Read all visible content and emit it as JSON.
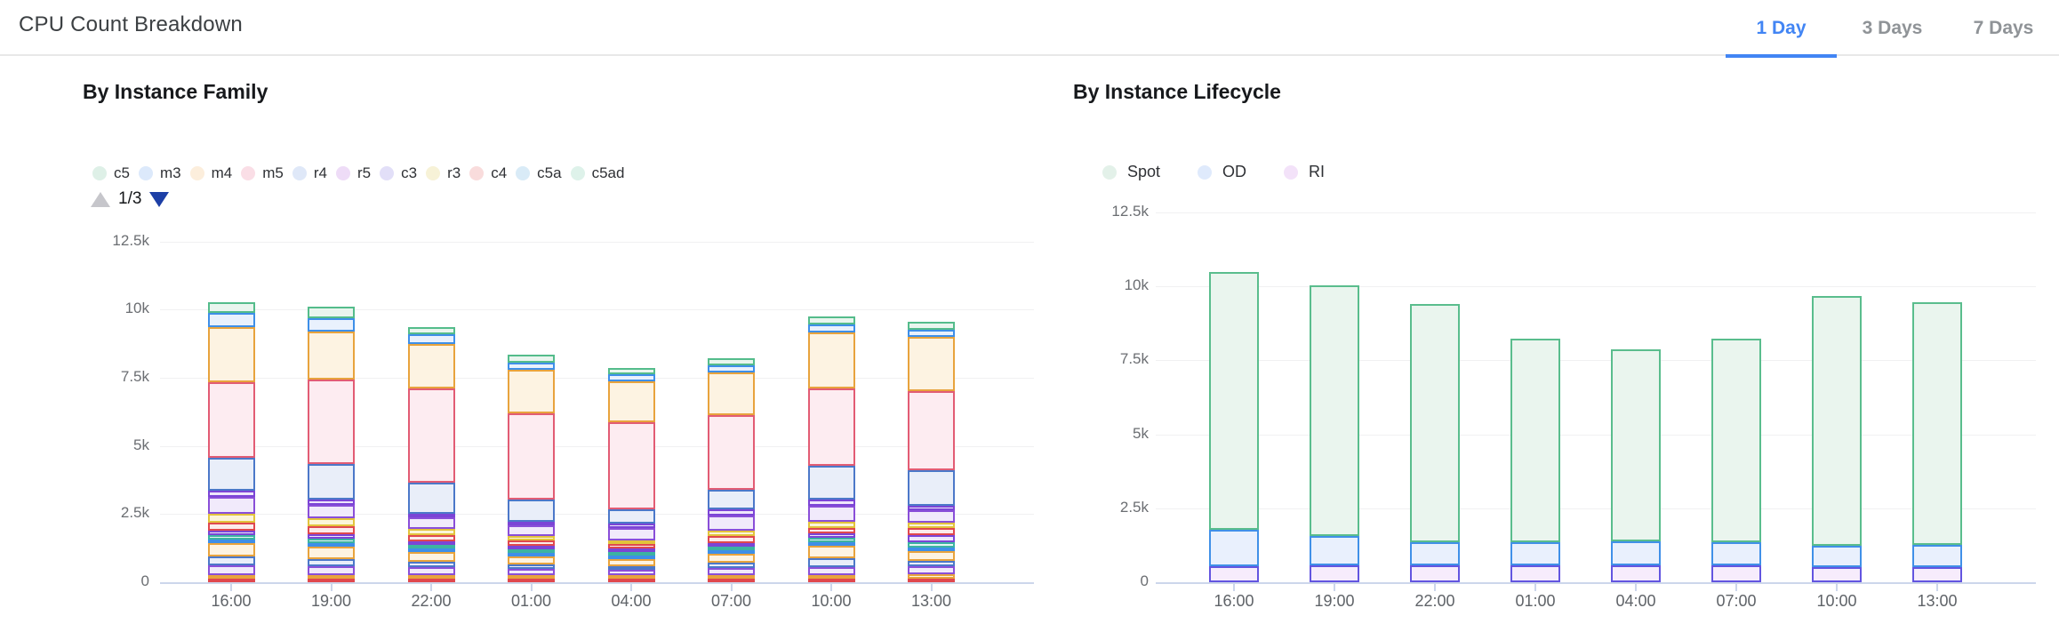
{
  "header": {
    "title": "CPU Count Breakdown",
    "tabs": [
      {
        "label": "1 Day",
        "active": true
      },
      {
        "label": "3 Days",
        "active": false
      },
      {
        "label": "7 Days",
        "active": false
      }
    ],
    "accent_color": "#4285f4"
  },
  "palette": {
    "red": {
      "stroke": "#e0484e",
      "fill": "#fcebeb"
    },
    "amber": {
      "stroke": "#e8a33d",
      "fill": "#fdf3e2"
    },
    "purple": {
      "stroke": "#8a4fd8",
      "fill": "#f1eafb"
    },
    "indigo": {
      "stroke": "#4c78c9",
      "fill": "#e9eef9"
    },
    "blue": {
      "stroke": "#3e8fe8",
      "fill": "#e9f1fd"
    },
    "teal": {
      "stroke": "#3cb3a2",
      "fill": "#e5f5f2"
    },
    "violet": {
      "stroke": "#7b45d6",
      "fill": "#efe7fb"
    },
    "yellow": {
      "stroke": "#e2c33c",
      "fill": "#fbf5d9"
    },
    "pink": {
      "stroke": "#e25c74",
      "fill": "#fdecf1"
    },
    "green": {
      "stroke": "#54bc8b",
      "fill": "#e9f5ee"
    },
    "spot": {
      "stroke": "#5abd8d",
      "fill": "#eaf5ee"
    },
    "od": {
      "stroke": "#4090e8",
      "fill": "#e9f0fd"
    },
    "ri": {
      "stroke": "#6355e0",
      "fill": "#f7ecfc"
    }
  },
  "family_chart": {
    "title": "By Instance Family",
    "legend": [
      {
        "label": "c5",
        "dot": "#def0e7"
      },
      {
        "label": "m3",
        "dot": "#dce9fb"
      },
      {
        "label": "m4",
        "dot": "#fceedc"
      },
      {
        "label": "m5",
        "dot": "#fadee6"
      },
      {
        "label": "r4",
        "dot": "#dfe8f8"
      },
      {
        "label": "r5",
        "dot": "#eedcf7"
      },
      {
        "label": "c3",
        "dot": "#e2dff8"
      },
      {
        "label": "r3",
        "dot": "#f7f2d7"
      },
      {
        "label": "c4",
        "dot": "#f9dcdc"
      },
      {
        "label": "c5a",
        "dot": "#d9ebf7"
      },
      {
        "label": "c5ad",
        "dot": "#def2ea"
      }
    ],
    "pagination": {
      "text": "1/3"
    }
  },
  "lifecycle_chart": {
    "title": "By Instance Lifecycle",
    "legend": [
      {
        "label": "Spot",
        "dot": "#e3f1e9"
      },
      {
        "label": "OD",
        "dot": "#dfeafc"
      },
      {
        "label": "RI",
        "dot": "#f3e2f9"
      }
    ]
  },
  "chart_data": [
    {
      "type": "bar",
      "stacked": true,
      "title": "By Instance Family",
      "categories": [
        "16:00",
        "19:00",
        "22:00",
        "01:00",
        "04:00",
        "07:00",
        "10:00",
        "13:00"
      ],
      "yticks": [
        "0",
        "2.5k",
        "5k",
        "7.5k",
        "10k",
        "12.5k"
      ],
      "ylim": [
        0,
        12500
      ],
      "grid": true,
      "legend_position": "top",
      "legend_page": "1/3",
      "legend_visible_series": [
        "c5",
        "m3",
        "m4",
        "m5",
        "r4",
        "r5",
        "c3",
        "r3",
        "c4",
        "c5a",
        "c5ad"
      ],
      "totals": [
        10280,
        10020,
        9300,
        8220,
        7830,
        8220,
        9690,
        9430
      ],
      "note_segment_order": "bottom_to_top",
      "bars": [
        {
          "category": "16:00",
          "segments": [
            [
              "red",
              100
            ],
            [
              "amber",
              130
            ],
            [
              "purple",
              360
            ],
            [
              "indigo",
              330
            ],
            [
              "amber",
              490
            ],
            [
              "blue",
              130
            ],
            [
              "teal",
              160
            ],
            [
              "violet",
              160
            ],
            [
              "red",
              290
            ],
            [
              "yellow",
              330
            ],
            [
              "purple",
              620
            ],
            [
              "violet",
              230
            ],
            [
              "indigo",
              1200
            ],
            [
              "pink",
              2810
            ],
            [
              "amber",
              2030
            ],
            [
              "blue",
              520
            ],
            [
              "green",
              390
            ]
          ]
        },
        {
          "category": "19:00",
          "segments": [
            [
              "red",
              120
            ],
            [
              "amber",
              120
            ],
            [
              "purple",
              330
            ],
            [
              "indigo",
              250
            ],
            [
              "amber",
              450
            ],
            [
              "blue",
              120
            ],
            [
              "teal",
              150
            ],
            [
              "violet",
              150
            ],
            [
              "red",
              280
            ],
            [
              "yellow",
              300
            ],
            [
              "purple",
              500
            ],
            [
              "violet",
              180
            ],
            [
              "indigo",
              1300
            ],
            [
              "pink",
              3100
            ],
            [
              "amber",
              1750
            ],
            [
              "blue",
              500
            ],
            [
              "green",
              420
            ]
          ]
        },
        {
          "category": "22:00",
          "segments": [
            [
              "red",
              100
            ],
            [
              "amber",
              100
            ],
            [
              "purple",
              280
            ],
            [
              "indigo",
              200
            ],
            [
              "amber",
              350
            ],
            [
              "blue",
              100
            ],
            [
              "teal",
              120
            ],
            [
              "violet",
              120
            ],
            [
              "red",
              220
            ],
            [
              "yellow",
              230
            ],
            [
              "purple",
              460
            ],
            [
              "violet",
              80
            ],
            [
              "indigo",
              1130
            ],
            [
              "pink",
              3530
            ],
            [
              "amber",
              1660
            ],
            [
              "blue",
              370
            ],
            [
              "green",
              250
            ]
          ]
        },
        {
          "category": "01:00",
          "segments": [
            [
              "red",
              80
            ],
            [
              "amber",
              80
            ],
            [
              "purple",
              220
            ],
            [
              "indigo",
              150
            ],
            [
              "amber",
              280
            ],
            [
              "blue",
              80
            ],
            [
              "teal",
              100
            ],
            [
              "violet",
              100
            ],
            [
              "red",
              180
            ],
            [
              "yellow",
              150
            ],
            [
              "purple",
              420
            ],
            [
              "violet",
              120
            ],
            [
              "indigo",
              810
            ],
            [
              "pink",
              3270
            ],
            [
              "amber",
              1630
            ],
            [
              "blue",
              270
            ],
            [
              "green",
              280
            ]
          ]
        },
        {
          "category": "04:00",
          "segments": [
            [
              "red",
              80
            ],
            [
              "amber",
              80
            ],
            [
              "purple",
              200
            ],
            [
              "indigo",
              140
            ],
            [
              "amber",
              250
            ],
            [
              "blue",
              80
            ],
            [
              "teal",
              100
            ],
            [
              "violet",
              100
            ],
            [
              "red",
              160
            ],
            [
              "yellow",
              140
            ],
            [
              "purple",
              450
            ],
            [
              "violet",
              210
            ],
            [
              "indigo",
              520
            ],
            [
              "pink",
              3310
            ],
            [
              "amber",
              1530
            ],
            [
              "blue",
              250
            ],
            [
              "green",
              230
            ]
          ]
        },
        {
          "category": "07:00",
          "segments": [
            [
              "red",
              100
            ],
            [
              "amber",
              100
            ],
            [
              "purple",
              260
            ],
            [
              "indigo",
              200
            ],
            [
              "amber",
              320
            ],
            [
              "blue",
              100
            ],
            [
              "teal",
              130
            ],
            [
              "violet",
              130
            ],
            [
              "red",
              260
            ],
            [
              "yellow",
              200
            ],
            [
              "purple",
              560
            ],
            [
              "violet",
              250
            ],
            [
              "indigo",
              720
            ],
            [
              "pink",
              2770
            ],
            [
              "amber",
              1600
            ],
            [
              "blue",
              250
            ],
            [
              "green",
              270
            ]
          ]
        },
        {
          "category": "10:00",
          "segments": [
            [
              "red",
              100
            ],
            [
              "amber",
              120
            ],
            [
              "purple",
              300
            ],
            [
              "indigo",
              330
            ],
            [
              "amber",
              450
            ],
            [
              "blue",
              120
            ],
            [
              "teal",
              150
            ],
            [
              "violet",
              150
            ],
            [
              "red",
              200
            ],
            [
              "yellow",
              220
            ],
            [
              "purple",
              580
            ],
            [
              "violet",
              220
            ],
            [
              "indigo",
              1240
            ],
            [
              "pink",
              2870
            ],
            [
              "amber",
              2050
            ],
            [
              "blue",
              300
            ],
            [
              "green",
              290
            ]
          ]
        },
        {
          "category": "13:00",
          "segments": [
            [
              "red",
              100
            ],
            [
              "amber",
              150
            ],
            [
              "purple",
              280
            ],
            [
              "indigo",
              200
            ],
            [
              "amber",
              350
            ],
            [
              "blue",
              120
            ],
            [
              "teal",
              180
            ],
            [
              "violet",
              250
            ],
            [
              "red",
              250
            ],
            [
              "yellow",
              200
            ],
            [
              "purple",
              450
            ],
            [
              "violet",
              150
            ],
            [
              "indigo",
              1300
            ],
            [
              "pink",
              2940
            ],
            [
              "amber",
              1980
            ],
            [
              "blue",
              250
            ],
            [
              "green",
              280
            ]
          ]
        }
      ]
    },
    {
      "type": "bar",
      "stacked": true,
      "title": "By Instance Lifecycle",
      "categories": [
        "16:00",
        "19:00",
        "22:00",
        "01:00",
        "04:00",
        "07:00",
        "10:00",
        "13:00"
      ],
      "yticks": [
        "0",
        "2.5k",
        "5k",
        "7.5k",
        "10k",
        "12.5k"
      ],
      "ylim": [
        0,
        12500
      ],
      "grid": true,
      "legend_position": "top",
      "series": [
        {
          "name": "Spot",
          "color": "spot",
          "values": [
            8710,
            8460,
            8040,
            6870,
            6490,
            6880,
            8440,
            8200
          ]
        },
        {
          "name": "OD",
          "color": "od",
          "values": [
            1220,
            1000,
            780,
            780,
            800,
            780,
            730,
            750
          ]
        },
        {
          "name": "RI",
          "color": "ri",
          "values": [
            550,
            560,
            560,
            570,
            560,
            560,
            510,
            520
          ]
        }
      ],
      "stack_order_bottom_to_top": [
        "RI",
        "OD",
        "Spot"
      ],
      "totals": [
        10480,
        10020,
        9380,
        8220,
        7850,
        8220,
        9680,
        9470
      ]
    }
  ]
}
